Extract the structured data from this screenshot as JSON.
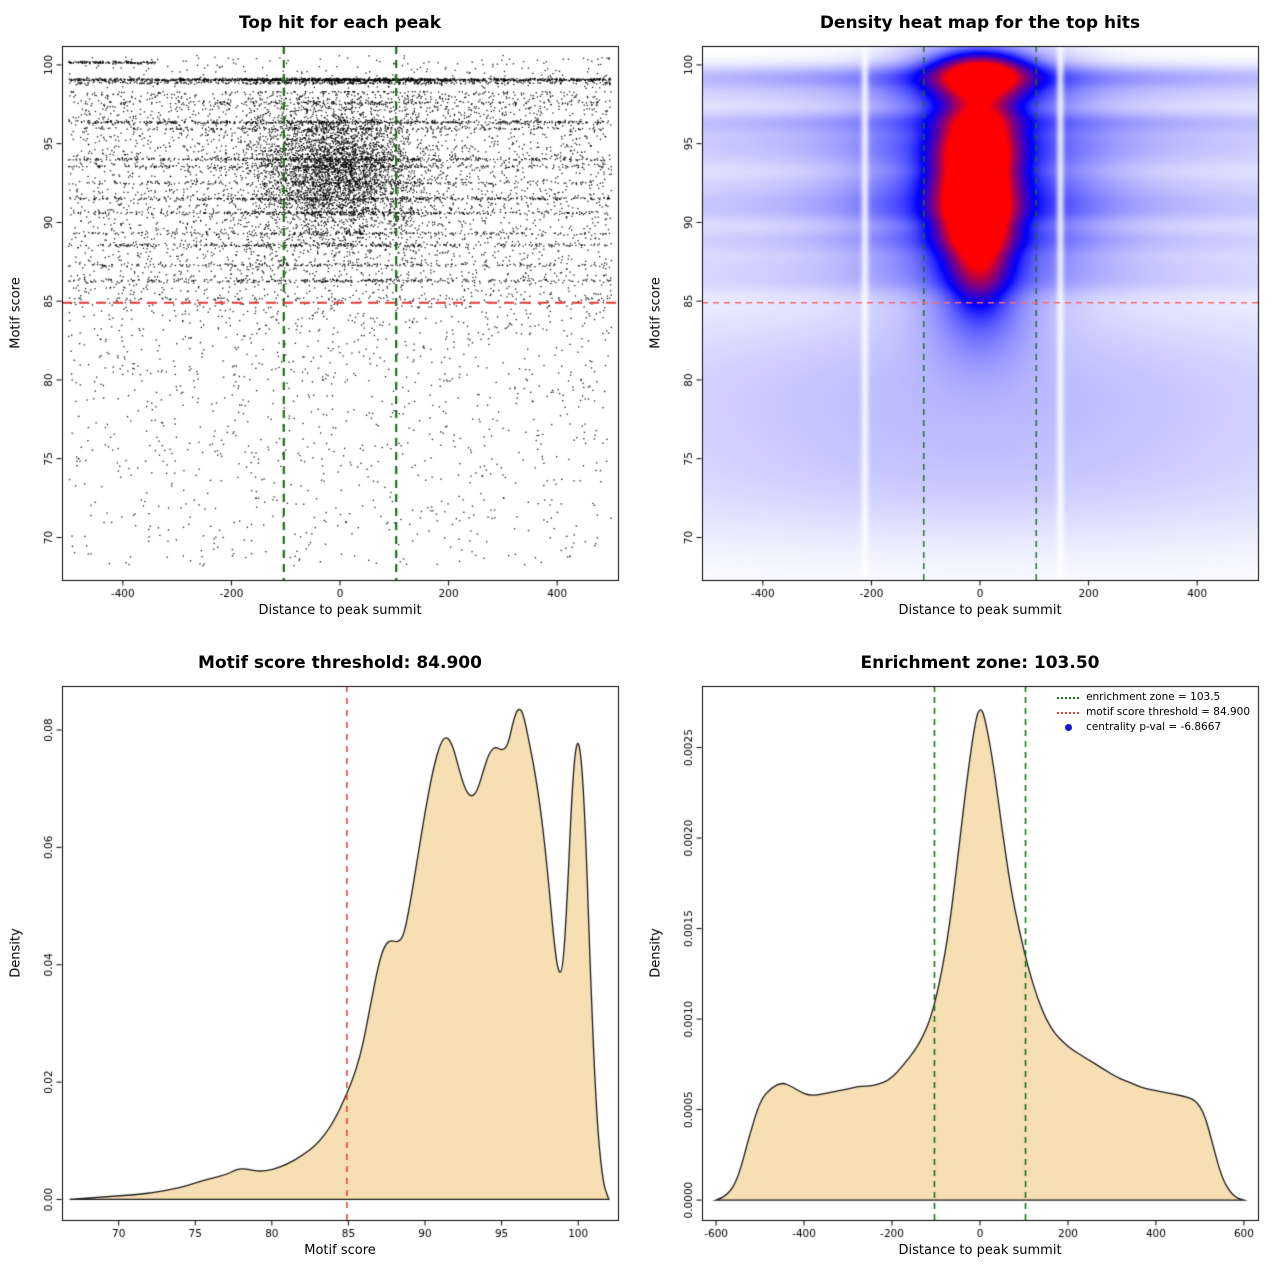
{
  "page": {
    "background": "#ffffff"
  },
  "colors": {
    "threshold_red": "#e8392f",
    "threshold_red_light": "#ff6666",
    "enrichment_green": "#1b6e1b",
    "scatter_black": "#000000",
    "density_fill": "#f6dfb3",
    "density_stroke": "#1a1a1a",
    "heat_mid_blue": "#0000ff",
    "heat_high_red": "#ff0000",
    "legend_dot_blue": "#1414cc"
  },
  "chart_data": [
    {
      "id": "top-hits-scatter",
      "type": "scatter",
      "title": "Top hit for each peak",
      "xlabel": "Distance to peak summit",
      "ylabel": "Motif score",
      "xlim": [
        -512,
        512
      ],
      "ylim": [
        67.3,
        101.2
      ],
      "xticks": [
        -400,
        -200,
        0,
        200,
        400
      ],
      "yticks": [
        70,
        75,
        80,
        85,
        90,
        95,
        100
      ],
      "hline_y": 84.9,
      "vlines_x": [
        -103.5,
        103.5
      ],
      "points": {
        "seed": 20240613,
        "components": [
          {
            "kind": "gauss2d",
            "n": 2600,
            "x_mean": -10,
            "x_sd": 95,
            "y_mean": 93.0,
            "y_sd": 2.5,
            "y_clamp": [
              85.3,
              98.3
            ]
          },
          {
            "kind": "gauss2d",
            "n": 1400,
            "x_mean": -5,
            "x_sd": 55,
            "y_mean": 93.4,
            "y_sd": 1.7,
            "y_clamp": [
              86.0,
              97.5
            ]
          },
          {
            "kind": "uniform_x_pow_y",
            "n": 3400,
            "y_top": 98.3,
            "y_span": 13.2,
            "pow": 1.3
          },
          {
            "kind": "low_tail",
            "n": 1300,
            "y_top": 85.2,
            "y_span": 17.0,
            "pow": 1.6,
            "y_min": 68.0
          },
          {
            "kind": "high_sparse",
            "n": 240,
            "y_min": 98.5,
            "y_max": 100.6
          }
        ],
        "bands": [
          {
            "y": 99.05,
            "n": 1500,
            "sd": 0.05
          },
          {
            "y": 98.85,
            "n": 350,
            "sd": 0.04
          },
          {
            "y": 97.6,
            "n": 170,
            "sd": 0.05
          },
          {
            "y": 96.35,
            "n": 520,
            "sd": 0.05
          },
          {
            "y": 95.95,
            "n": 240,
            "sd": 0.05
          },
          {
            "y": 94.0,
            "n": 400,
            "sd": 0.05
          },
          {
            "y": 93.55,
            "n": 230,
            "sd": 0.05
          },
          {
            "y": 92.5,
            "n": 200,
            "sd": 0.05
          },
          {
            "y": 91.5,
            "n": 380,
            "sd": 0.05
          },
          {
            "y": 90.6,
            "n": 320,
            "sd": 0.05
          },
          {
            "y": 89.3,
            "n": 210,
            "sd": 0.05
          },
          {
            "y": 88.55,
            "n": 300,
            "sd": 0.05
          },
          {
            "y": 87.3,
            "n": 190,
            "sd": 0.05
          },
          {
            "y": 86.3,
            "n": 280,
            "sd": 0.05
          },
          {
            "y": 100.15,
            "n": 130,
            "sd": 0.04,
            "x_min": -500,
            "x_max": -340
          }
        ]
      }
    },
    {
      "id": "top-hits-heatmap",
      "type": "heatmap",
      "title": "Density heat map for the top hits",
      "xlabel": "Distance to peak summit",
      "ylabel": "Motif score",
      "xlim": [
        -512,
        512
      ],
      "ylim": [
        67.3,
        101.2
      ],
      "xticks": [
        -400,
        -200,
        0,
        200,
        400
      ],
      "yticks": [
        70,
        75,
        80,
        85,
        90,
        95,
        100
      ],
      "hline_y": 84.9,
      "vlines_x": [
        -103.5,
        103.5
      ],
      "heatmap": {
        "kernels": [
          {
            "x": -8,
            "y": 92.5,
            "sx": 46,
            "sy": 2.7,
            "w": 1.7
          },
          {
            "x": -5,
            "y": 90.2,
            "sx": 40,
            "sy": 1.6,
            "w": 1.0
          },
          {
            "x": 0,
            "y": 94.9,
            "sx": 42,
            "sy": 1.3,
            "w": 0.8
          },
          {
            "x": 2,
            "y": 99.3,
            "sx": 50,
            "sy": 0.8,
            "w": 1.5
          },
          {
            "x": 2,
            "y": 99.2,
            "sx": 95,
            "sy": 1.6,
            "w": 0.4
          },
          {
            "x": 0,
            "y": 97.2,
            "sx": 42,
            "sy": 1.3,
            "w": 0.5
          },
          {
            "x": 0,
            "y": 87.2,
            "sx": 33,
            "sy": 1.7,
            "w": 0.6
          },
          {
            "x": 0,
            "y": 92.0,
            "sx": 135,
            "sy": 4.5,
            "w": 0.4
          },
          {
            "x": 0,
            "y": 84.5,
            "sx": 65,
            "sy": 2.5,
            "w": 0.22
          }
        ],
        "bands": [
          {
            "y": 99.15,
            "sy": 0.6,
            "w": 0.3
          },
          {
            "y": 97.9,
            "sy": 0.5,
            "w": 0.12
          },
          {
            "y": 96.35,
            "sy": 0.6,
            "w": 0.26
          },
          {
            "y": 95.0,
            "sy": 0.6,
            "w": 0.18
          },
          {
            "y": 93.9,
            "sy": 0.6,
            "w": 0.14
          },
          {
            "y": 92.6,
            "sy": 0.5,
            "w": 0.12
          },
          {
            "y": 91.5,
            "sy": 0.6,
            "w": 0.2
          },
          {
            "y": 90.5,
            "sy": 0.5,
            "w": 0.16
          },
          {
            "y": 89.3,
            "sy": 0.5,
            "w": 0.1
          },
          {
            "y": 88.5,
            "sy": 0.6,
            "w": 0.14
          },
          {
            "y": 87.3,
            "sy": 0.5,
            "w": 0.09
          },
          {
            "y": 86.3,
            "sy": 0.6,
            "w": 0.11
          }
        ],
        "lower_glow": [
          {
            "y": 79.5,
            "sy": 4.2,
            "w": 0.16,
            "sx": 380
          },
          {
            "y": 73.0,
            "sy": 3.0,
            "w": 0.08,
            "sx": 420
          }
        ],
        "white_gaps_x": [
          -212,
          148
        ],
        "max_density": 1.5,
        "gamma": 0.8
      }
    },
    {
      "id": "motif-score-density",
      "type": "area",
      "title": "Motif score threshold: 84.900",
      "xlabel": "Motif score",
      "ylabel": "Density",
      "xlim": [
        66.3,
        102.6
      ],
      "ylim": [
        -0.0035,
        0.0875
      ],
      "xticks": [
        70,
        75,
        80,
        85,
        90,
        95,
        100
      ],
      "yticks": [
        0,
        0.02,
        0.04,
        0.06,
        0.08
      ],
      "ytick_labels": [
        "0.00",
        "0.02",
        "0.04",
        "0.06",
        "0.08"
      ],
      "vline_x": 84.9,
      "curve": {
        "x": [
          66.8,
          70,
          72,
          74,
          75,
          76,
          77,
          77.6,
          78.1,
          78.6,
          79.2,
          80,
          81,
          82,
          83,
          84,
          84.9,
          85.5,
          86,
          86.5,
          87,
          87.4,
          87.8,
          88.2,
          88.6,
          89,
          89.5,
          90,
          90.5,
          91,
          91.4,
          91.8,
          92.2,
          92.6,
          93,
          93.4,
          93.8,
          94.2,
          94.6,
          95,
          95.4,
          95.8,
          96.1,
          96.4,
          96.8,
          97.2,
          97.6,
          98,
          98.4,
          98.7,
          99,
          99.3,
          99.6,
          99.9,
          100.2,
          100.5,
          100.8,
          101.2,
          101.6,
          102
        ],
        "y": [
          0,
          0.0006,
          0.001,
          0.002,
          0.0028,
          0.0036,
          0.0042,
          0.005,
          0.0053,
          0.005,
          0.0048,
          0.005,
          0.006,
          0.0075,
          0.0095,
          0.013,
          0.018,
          0.022,
          0.027,
          0.034,
          0.0405,
          0.0435,
          0.0442,
          0.0438,
          0.0448,
          0.05,
          0.058,
          0.066,
          0.073,
          0.0778,
          0.079,
          0.0775,
          0.0735,
          0.07,
          0.0685,
          0.0695,
          0.073,
          0.0762,
          0.0772,
          0.0765,
          0.0772,
          0.082,
          0.0838,
          0.083,
          0.078,
          0.0725,
          0.0655,
          0.056,
          0.0445,
          0.0385,
          0.039,
          0.052,
          0.07,
          0.0788,
          0.076,
          0.062,
          0.038,
          0.014,
          0.003,
          0
        ]
      }
    },
    {
      "id": "distance-density",
      "type": "area",
      "title": "Enrichment zone: 103.50",
      "xlabel": "Distance to peak summit",
      "ylabel": "Density",
      "xlim": [
        -632,
        632
      ],
      "ylim": [
        -0.00011,
        0.00284
      ],
      "xticks": [
        -600,
        -400,
        -200,
        0,
        200,
        400,
        600
      ],
      "yticks": [
        0,
        0.0005,
        0.001,
        0.0015,
        0.002,
        0.0025
      ],
      "ytick_labels": [
        "0.0000",
        "0.0005",
        "0.0010",
        "0.0015",
        "0.0020",
        "0.0025"
      ],
      "vlines_x": [
        -103.5,
        103.5
      ],
      "legend": [
        {
          "swatch": "green-dotted",
          "label": "enrichment zone = 103.5"
        },
        {
          "swatch": "red-dotted",
          "label": "motif score threshold = 84.900"
        },
        {
          "swatch": "blue-dot",
          "label": "centrality p-val = -6.8667"
        }
      ],
      "curve": {
        "x": [
          -600,
          -575,
          -550,
          -525,
          -500,
          -475,
          -450,
          -430,
          -410,
          -390,
          -370,
          -350,
          -330,
          -310,
          -290,
          -270,
          -250,
          -230,
          -210,
          -190,
          -170,
          -150,
          -130,
          -110,
          -90,
          -70,
          -50,
          -30,
          -10,
          0,
          10,
          30,
          50,
          70,
          90,
          110,
          130,
          150,
          170,
          190,
          210,
          230,
          250,
          270,
          290,
          310,
          330,
          350,
          370,
          390,
          410,
          430,
          450,
          470,
          490,
          510,
          530,
          550,
          575,
          600
        ],
        "y": [
          0,
          2e-05,
          0.00012,
          0.00035,
          0.00055,
          0.00062,
          0.00065,
          0.00063,
          0.0006,
          0.00058,
          0.00058,
          0.00059,
          0.0006,
          0.00061,
          0.00062,
          0.00063,
          0.00063,
          0.00064,
          0.00066,
          0.0007,
          0.00076,
          0.00082,
          0.0009,
          0.00102,
          0.00122,
          0.0015,
          0.0019,
          0.00232,
          0.00266,
          0.00272,
          0.00268,
          0.00242,
          0.00205,
          0.00172,
          0.00148,
          0.00128,
          0.00112,
          0.001,
          0.00092,
          0.00087,
          0.00083,
          0.0008,
          0.00077,
          0.00074,
          0.00071,
          0.00068,
          0.00066,
          0.00064,
          0.00062,
          0.00061,
          0.0006,
          0.00059,
          0.00058,
          0.00057,
          0.00055,
          0.00048,
          0.0003,
          0.00012,
          2e-05,
          0
        ]
      }
    }
  ]
}
